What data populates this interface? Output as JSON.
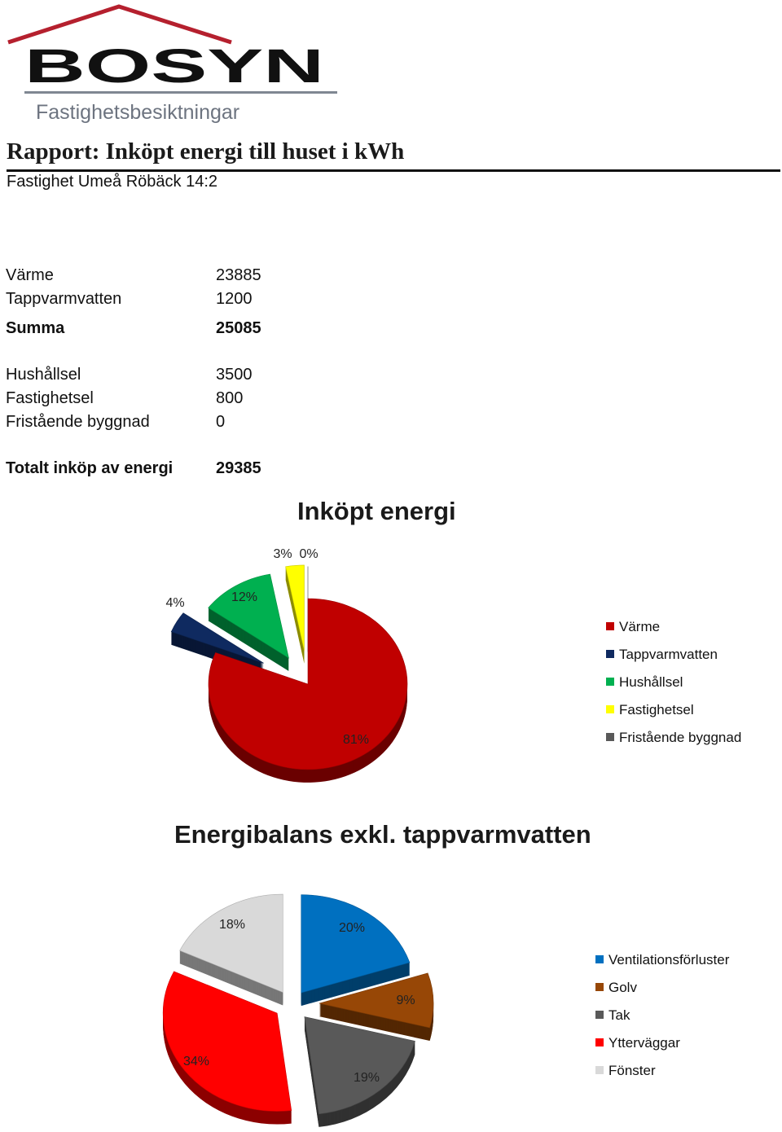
{
  "logo": {
    "brand": "BoSyn",
    "brand_display": "BOSYN",
    "tagline": "Fastighetsbesiktningar",
    "roof_color": "#b5202e"
  },
  "report": {
    "title": "Rapport: Inköpt energi till huset i kWh",
    "property": "Fastighet Umeå Röbäck 14:2"
  },
  "energy_table": {
    "rows": [
      {
        "label": "Värme",
        "value": "23885"
      },
      {
        "label": "Tappvarmvatten",
        "value": "1200"
      },
      {
        "label": "Summa",
        "value": "25085"
      },
      {
        "label": "Hushållsel",
        "value": "3500"
      },
      {
        "label": "Fastighetsel",
        "value": "800"
      },
      {
        "label": "Fristående byggnad",
        "value": "0"
      },
      {
        "label": "Totalt inköp av energi",
        "value": "29385"
      }
    ]
  },
  "chart_data": [
    {
      "type": "pie",
      "title": "Inköpt energi",
      "categories": [
        "Värme",
        "Tappvarmvatten",
        "Hushållsel",
        "Fastighetsel",
        "Fristående byggnad"
      ],
      "values": [
        81,
        4,
        12,
        3,
        0
      ],
      "value_labels": [
        "81%",
        "4%",
        "12%",
        "3%",
        "0%"
      ],
      "colors": [
        "#c00000",
        "#0f2a60",
        "#00b050",
        "#ffff00",
        "#595959"
      ],
      "legend": "right",
      "style": "3d-exploded"
    },
    {
      "type": "pie",
      "title": "Energibalans exkl. tappvarmvatten",
      "categories": [
        "Ventilationsförluster",
        "Golv",
        "Tak",
        "Ytterväggar",
        "Fönster"
      ],
      "values": [
        20,
        9,
        19,
        34,
        18
      ],
      "value_labels": [
        "20%",
        "9%",
        "19%",
        "34%",
        "18%"
      ],
      "colors": [
        "#0070c0",
        "#974706",
        "#595959",
        "#ff0000",
        "#d9d9d9"
      ],
      "legend": "right",
      "style": "3d-exploded"
    }
  ]
}
